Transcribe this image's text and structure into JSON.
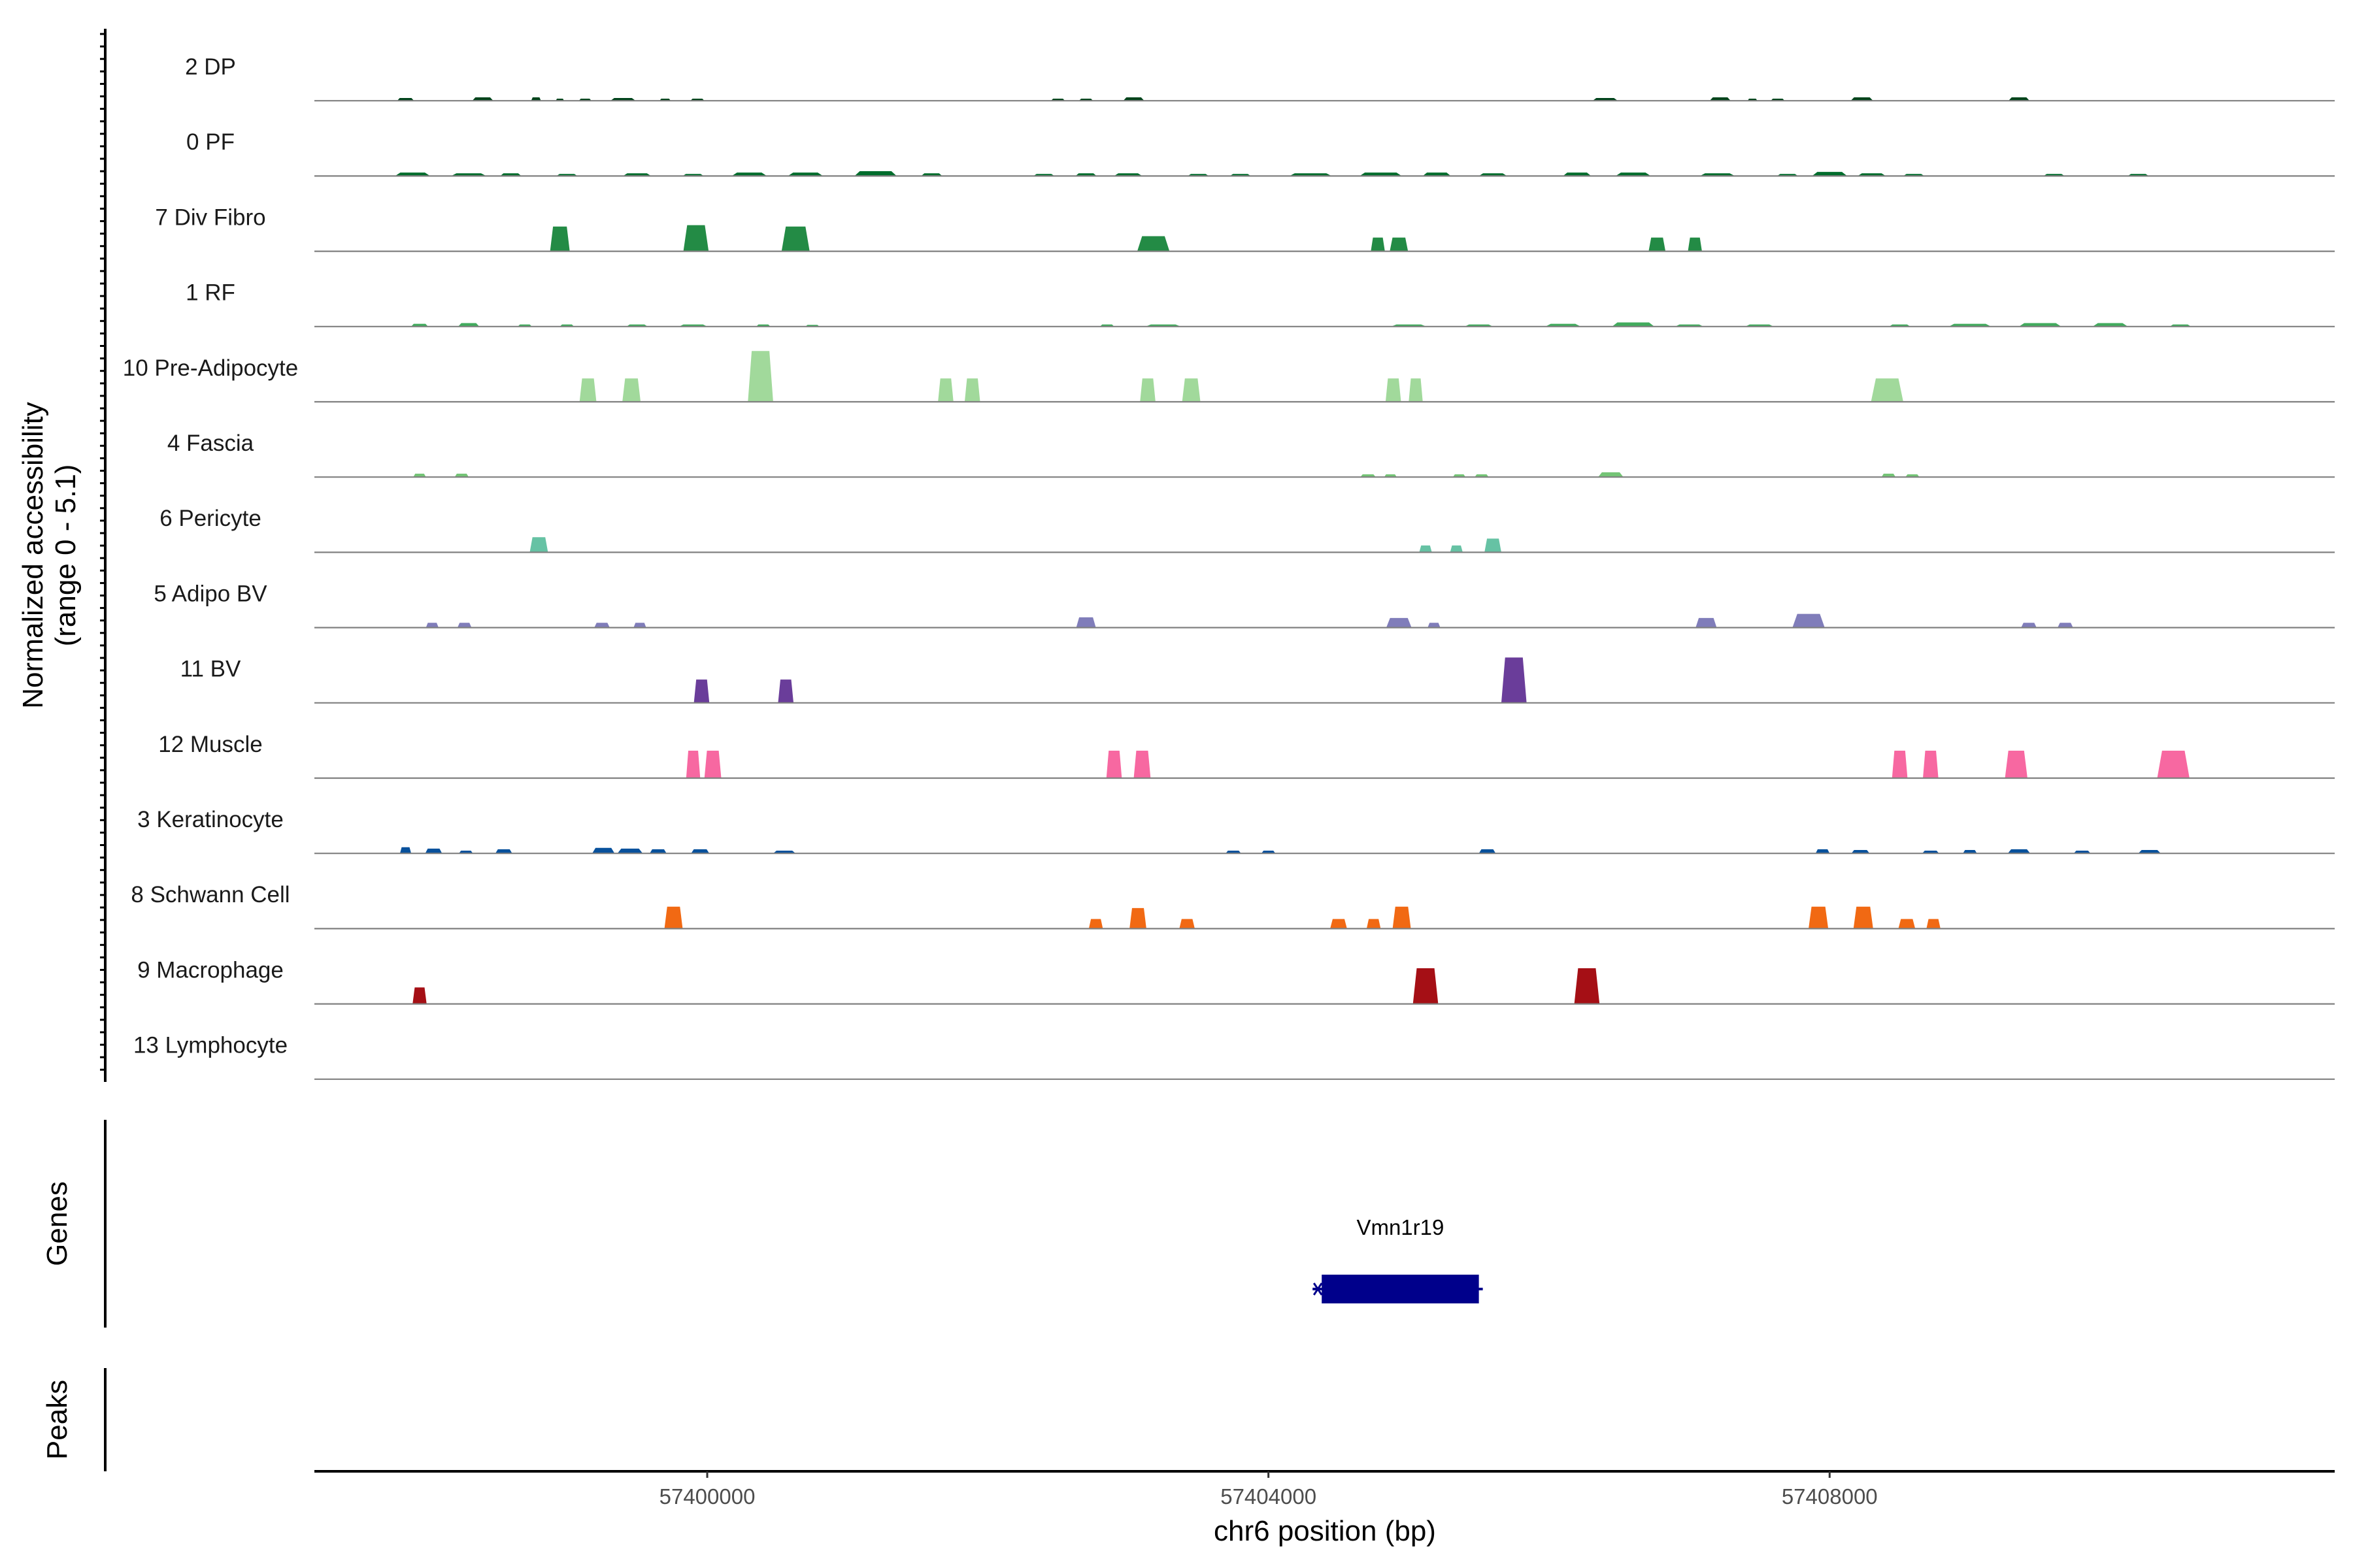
{
  "chart_data": {
    "type": "area",
    "chromosome": "chr6",
    "xlim": [
      57397200,
      57411600
    ],
    "x_ticks": [
      57400000,
      57404000,
      57408000
    ],
    "x_tick_labels": [
      "57400000",
      "57404000",
      "57408000"
    ],
    "xlabel": "chr6 position (bp)",
    "coverage_ylabel_line1": "Normalized accessibility",
    "coverage_ylabel_line2": "(range 0 - 5.1)",
    "ylim": [
      0,
      5.1
    ],
    "genes_panel_label": "Genes",
    "peaks_panel_label": "Peaks",
    "tracks": [
      {
        "name": "2 DP",
        "color": "#00441b",
        "peaks": [
          [
            57397850,
            0.2,
            120
          ],
          [
            57398400,
            0.25,
            150
          ],
          [
            57398780,
            0.25,
            70
          ],
          [
            57398950,
            0.15,
            60
          ],
          [
            57399130,
            0.15,
            90
          ],
          [
            57399400,
            0.2,
            180
          ],
          [
            57399700,
            0.15,
            80
          ],
          [
            57399930,
            0.15,
            100
          ],
          [
            57402500,
            0.15,
            100
          ],
          [
            57402700,
            0.15,
            100
          ],
          [
            57403040,
            0.25,
            150
          ],
          [
            57406400,
            0.2,
            180
          ],
          [
            57407220,
            0.25,
            150
          ],
          [
            57407450,
            0.15,
            70
          ],
          [
            57407630,
            0.15,
            100
          ],
          [
            57408230,
            0.25,
            160
          ],
          [
            57409350,
            0.25,
            150
          ]
        ]
      },
      {
        "name": "0 PF",
        "color": "#006d2c",
        "peaks": [
          [
            57397900,
            0.25,
            250
          ],
          [
            57398300,
            0.2,
            250
          ],
          [
            57398600,
            0.2,
            150
          ],
          [
            57399000,
            0.15,
            150
          ],
          [
            57399500,
            0.2,
            200
          ],
          [
            57399900,
            0.15,
            150
          ],
          [
            57400300,
            0.25,
            250
          ],
          [
            57400700,
            0.25,
            250
          ],
          [
            57401200,
            0.35,
            300
          ],
          [
            57401600,
            0.2,
            150
          ],
          [
            57402400,
            0.15,
            150
          ],
          [
            57402700,
            0.2,
            150
          ],
          [
            57403000,
            0.2,
            200
          ],
          [
            57403500,
            0.15,
            150
          ],
          [
            57403800,
            0.15,
            150
          ],
          [
            57404300,
            0.2,
            300
          ],
          [
            57404800,
            0.25,
            300
          ],
          [
            57405200,
            0.25,
            200
          ],
          [
            57405600,
            0.2,
            200
          ],
          [
            57406200,
            0.25,
            200
          ],
          [
            57406600,
            0.25,
            250
          ],
          [
            57407200,
            0.2,
            250
          ],
          [
            57407700,
            0.15,
            150
          ],
          [
            57408000,
            0.3,
            250
          ],
          [
            57408300,
            0.2,
            200
          ],
          [
            57408600,
            0.15,
            150
          ],
          [
            57409600,
            0.15,
            150
          ],
          [
            57410200,
            0.15,
            150
          ]
        ]
      },
      {
        "name": "7 Div Fibro",
        "color": "#238b45",
        "peaks": [
          [
            57398950,
            1.8,
            140
          ],
          [
            57399920,
            1.9,
            180
          ],
          [
            57400630,
            1.8,
            200
          ],
          [
            57403180,
            1.1,
            230
          ],
          [
            57404780,
            1.0,
            100
          ],
          [
            57404930,
            1.0,
            130
          ],
          [
            57406770,
            1.0,
            120
          ],
          [
            57407040,
            1.0,
            100
          ]
        ]
      },
      {
        "name": "1 RF",
        "color": "#41ab5d",
        "peaks": [
          [
            57397950,
            0.2,
            120
          ],
          [
            57398300,
            0.25,
            150
          ],
          [
            57398700,
            0.15,
            100
          ],
          [
            57399000,
            0.15,
            100
          ],
          [
            57399500,
            0.15,
            150
          ],
          [
            57399900,
            0.15,
            200
          ],
          [
            57400400,
            0.15,
            100
          ],
          [
            57400750,
            0.12,
            100
          ],
          [
            57402850,
            0.15,
            100
          ],
          [
            57403250,
            0.15,
            250
          ],
          [
            57405000,
            0.15,
            250
          ],
          [
            57405500,
            0.15,
            200
          ],
          [
            57406100,
            0.2,
            250
          ],
          [
            57406600,
            0.3,
            300
          ],
          [
            57407000,
            0.15,
            200
          ],
          [
            57407500,
            0.15,
            200
          ],
          [
            57408500,
            0.15,
            150
          ],
          [
            57409000,
            0.2,
            300
          ],
          [
            57409500,
            0.25,
            300
          ],
          [
            57410000,
            0.25,
            250
          ],
          [
            57410500,
            0.15,
            150
          ]
        ]
      },
      {
        "name": "10 Pre-Adipocyte",
        "color": "#a1d99b",
        "peaks": [
          [
            57399150,
            1.7,
            120
          ],
          [
            57399460,
            1.7,
            130
          ],
          [
            57400380,
            3.7,
            180
          ],
          [
            57401700,
            1.7,
            110
          ],
          [
            57401890,
            1.7,
            110
          ],
          [
            57403140,
            1.7,
            110
          ],
          [
            57403450,
            1.7,
            130
          ],
          [
            57404890,
            1.7,
            110
          ],
          [
            57405050,
            1.7,
            100
          ],
          [
            57408410,
            1.7,
            230
          ]
        ]
      },
      {
        "name": "4 Fascia",
        "color": "#74c476",
        "peaks": [
          [
            57397950,
            0.25,
            90
          ],
          [
            57398250,
            0.25,
            100
          ],
          [
            57404710,
            0.2,
            110
          ],
          [
            57404870,
            0.2,
            90
          ],
          [
            57405360,
            0.2,
            90
          ],
          [
            57405520,
            0.2,
            100
          ],
          [
            57406440,
            0.35,
            180
          ],
          [
            57408420,
            0.25,
            100
          ],
          [
            57408590,
            0.2,
            100
          ]
        ]
      },
      {
        "name": "6 Pericyte",
        "color": "#66c2a4",
        "peaks": [
          [
            57398800,
            1.1,
            130
          ],
          [
            57405120,
            0.5,
            90
          ],
          [
            57405340,
            0.5,
            90
          ],
          [
            57405600,
            1.0,
            120
          ]
        ]
      },
      {
        "name": "5 Adipo BV",
        "color": "#807dba",
        "peaks": [
          [
            57398040,
            0.35,
            90
          ],
          [
            57398270,
            0.35,
            100
          ],
          [
            57399250,
            0.35,
            110
          ],
          [
            57399520,
            0.35,
            90
          ],
          [
            57402700,
            0.75,
            140
          ],
          [
            57404930,
            0.7,
            180
          ],
          [
            57405180,
            0.35,
            90
          ],
          [
            57407120,
            0.7,
            150
          ],
          [
            57407850,
            1.0,
            230
          ],
          [
            57409420,
            0.35,
            110
          ],
          [
            57409680,
            0.35,
            110
          ]
        ]
      },
      {
        "name": "11 BV",
        "color": "#6a3d9a",
        "peaks": [
          [
            57399960,
            1.7,
            110
          ],
          [
            57400560,
            1.7,
            110
          ],
          [
            57405750,
            3.3,
            180
          ]
        ]
      },
      {
        "name": "12 Muscle",
        "color": "#f768a1",
        "peaks": [
          [
            57399900,
            2.0,
            100
          ],
          [
            57400040,
            2.0,
            120
          ],
          [
            57402900,
            2.0,
            110
          ],
          [
            57403100,
            2.0,
            120
          ],
          [
            57408500,
            2.0,
            110
          ],
          [
            57408720,
            2.0,
            110
          ],
          [
            57409330,
            2.0,
            160
          ],
          [
            57410450,
            2.0,
            230
          ]
        ]
      },
      {
        "name": "3 Keratinocyte",
        "color": "#08519c",
        "peaks": [
          [
            57397850,
            0.45,
            80
          ],
          [
            57398050,
            0.35,
            120
          ],
          [
            57398280,
            0.2,
            100
          ],
          [
            57398550,
            0.3,
            120
          ],
          [
            57399260,
            0.4,
            160
          ],
          [
            57399450,
            0.35,
            180
          ],
          [
            57399650,
            0.3,
            120
          ],
          [
            57399950,
            0.3,
            130
          ],
          [
            57400550,
            0.2,
            160
          ],
          [
            57403750,
            0.2,
            110
          ],
          [
            57404000,
            0.2,
            100
          ],
          [
            57405560,
            0.3,
            120
          ],
          [
            57407950,
            0.3,
            100
          ],
          [
            57408220,
            0.25,
            130
          ],
          [
            57408720,
            0.2,
            120
          ],
          [
            57409000,
            0.25,
            100
          ],
          [
            57409350,
            0.3,
            160
          ],
          [
            57409800,
            0.2,
            120
          ],
          [
            57410280,
            0.25,
            160
          ]
        ]
      },
      {
        "name": "8 Schwann Cell",
        "color": "#f16913",
        "peaks": [
          [
            57399760,
            1.6,
            130
          ],
          [
            57402770,
            0.7,
            100
          ],
          [
            57403070,
            1.5,
            120
          ],
          [
            57403420,
            0.7,
            110
          ],
          [
            57404500,
            0.7,
            120
          ],
          [
            57404750,
            0.7,
            100
          ],
          [
            57404950,
            1.6,
            130
          ],
          [
            57407920,
            1.6,
            140
          ],
          [
            57408240,
            1.6,
            140
          ],
          [
            57408550,
            0.7,
            120
          ],
          [
            57408740,
            0.7,
            100
          ]
        ]
      },
      {
        "name": "9 Macrophage",
        "color": "#a50f15",
        "peaks": [
          [
            57397950,
            1.2,
            100
          ],
          [
            57405120,
            2.6,
            180
          ],
          [
            57406270,
            2.6,
            180
          ]
        ]
      },
      {
        "name": "13 Lymphocyte",
        "color": "#ec7014",
        "peaks": []
      }
    ],
    "genes": [
      {
        "name": "Vmn1r19",
        "start": 57404380,
        "end": 57405500,
        "strand": "-",
        "color": "#00008b"
      }
    ],
    "peaks_track": []
  }
}
